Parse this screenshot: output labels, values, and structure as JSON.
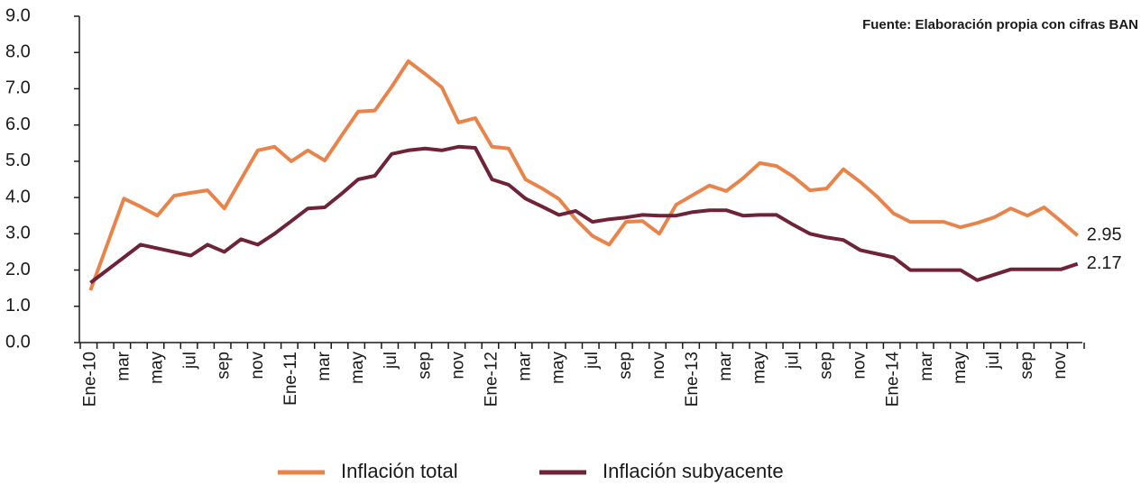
{
  "chart_data": {
    "type": "line",
    "source": "Fuente: Elaboración propia con cifras BAN",
    "categories": [
      "Ene-10",
      null,
      "mar",
      null,
      "may",
      null,
      "jul",
      null,
      "sep",
      null,
      "nov",
      null,
      "Ene-11",
      null,
      "mar",
      null,
      "may",
      null,
      "jul",
      null,
      "sep",
      null,
      "nov",
      null,
      "Ene-12",
      null,
      "mar",
      null,
      "may",
      null,
      "jul",
      null,
      "sep",
      null,
      "nov",
      null,
      "Ene-13",
      null,
      "mar",
      null,
      "may",
      null,
      "jul",
      null,
      "sep",
      null,
      "nov",
      null,
      "Ene-14",
      null,
      "mar",
      null,
      "may",
      null,
      "jul",
      null,
      "sep",
      null,
      "nov",
      null
    ],
    "series": [
      {
        "name": "Inflación total",
        "color": "#e8844a",
        "values": [
          1.44,
          2.7,
          3.97,
          3.75,
          3.5,
          4.05,
          4.13,
          4.2,
          3.7,
          4.5,
          5.3,
          5.4,
          5.0,
          5.3,
          5.02,
          5.7,
          6.37,
          6.4,
          7.05,
          7.76,
          7.41,
          7.04,
          6.07,
          6.19,
          5.4,
          5.35,
          4.5,
          4.25,
          3.96,
          3.4,
          2.94,
          2.7,
          3.33,
          3.35,
          3.0,
          3.8,
          4.07,
          4.33,
          4.18,
          4.53,
          4.95,
          4.87,
          4.58,
          4.2,
          4.25,
          4.78,
          4.43,
          4.03,
          3.56,
          3.33,
          3.33,
          3.33,
          3.18,
          3.3,
          3.45,
          3.7,
          3.5,
          3.73,
          3.35,
          2.95
        ]
      },
      {
        "name": "Inflación subyacente",
        "color": "#6e2339",
        "values": [
          1.65,
          2.0,
          2.35,
          2.7,
          2.6,
          2.5,
          2.4,
          2.7,
          2.5,
          2.85,
          2.7,
          3.0,
          3.35,
          3.7,
          3.73,
          4.1,
          4.5,
          4.6,
          5.2,
          5.3,
          5.35,
          5.3,
          5.4,
          5.37,
          4.5,
          4.35,
          3.97,
          3.75,
          3.52,
          3.63,
          3.33,
          3.4,
          3.45,
          3.52,
          3.5,
          3.5,
          3.6,
          3.65,
          3.65,
          3.5,
          3.52,
          3.52,
          3.25,
          3.0,
          2.9,
          2.83,
          2.55,
          2.45,
          2.35,
          2.0,
          2.0,
          2.0,
          2.0,
          1.72,
          1.87,
          2.02,
          2.02,
          2.02,
          2.02,
          2.17
        ]
      }
    ],
    "end_labels": true,
    "ylim": [
      0,
      9
    ],
    "yticks": [
      {
        "value": 0,
        "label": "0.0"
      },
      {
        "value": 1,
        "label": "1.0"
      },
      {
        "value": 2,
        "label": "2.0"
      },
      {
        "value": 3,
        "label": "3.0"
      },
      {
        "value": 4,
        "label": "4.0"
      },
      {
        "value": 5,
        "label": "5.0"
      },
      {
        "value": 6,
        "label": "6.0"
      },
      {
        "value": 7,
        "label": "7.0"
      },
      {
        "value": 8,
        "label": "8.0"
      },
      {
        "value": 9,
        "label": "9.0"
      }
    ],
    "grid": false,
    "legend": "bottom"
  }
}
